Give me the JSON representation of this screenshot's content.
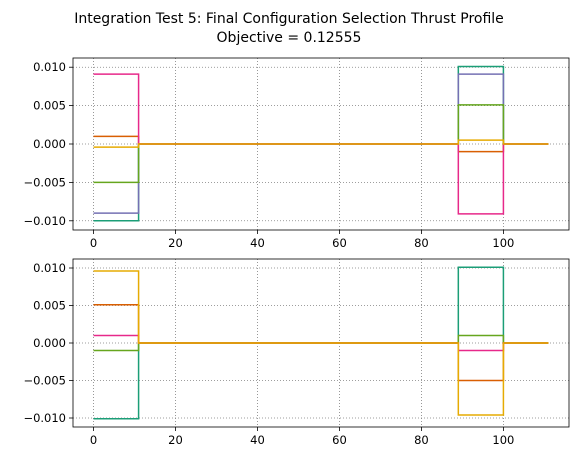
{
  "title": {
    "line1": "Integration Test 5: Final Configuration Selection Thrust Profile",
    "line2": "Objective = 0.12555"
  },
  "chart_data": [
    {
      "type": "line",
      "drawstyle": "steps",
      "title": "",
      "xlabel": "",
      "ylabel": "",
      "xlim": [
        -5,
        116
      ],
      "ylim": [
        -0.0112,
        0.0112
      ],
      "xticks": [
        0,
        20,
        40,
        60,
        80,
        100
      ],
      "yticks": [
        0.01,
        0.005,
        0.0,
        -0.005,
        -0.01
      ],
      "ytick_labels": [
        "0.010",
        "0.005",
        "0.000",
        "−0.005",
        "−0.010"
      ],
      "grid": true,
      "grid_style": "dotted",
      "legend": "none",
      "series": [
        {
          "color": "#1b9e77",
          "x": [
            0,
            11,
            89,
            100,
            111
          ],
          "values": [
            -0.01,
            0.0,
            0.0101,
            0.0,
            0.0
          ]
        },
        {
          "color": "#7570b3",
          "x": [
            0,
            11,
            89,
            100,
            111
          ],
          "values": [
            -0.009,
            0.0,
            0.0091,
            0.0,
            0.0
          ]
        },
        {
          "color": "#66a61e",
          "x": [
            0,
            11,
            89,
            100,
            111
          ],
          "values": [
            -0.005,
            0.0,
            0.0051,
            0.0,
            0.0
          ]
        },
        {
          "color": "#d95f02",
          "x": [
            0,
            11,
            89,
            100,
            111
          ],
          "values": [
            0.001,
            0.0,
            -0.001,
            0.0,
            0.0
          ]
        },
        {
          "color": "#e7298a",
          "x": [
            0,
            11,
            89,
            100,
            111
          ],
          "values": [
            0.0091,
            0.0,
            -0.0091,
            0.0,
            0.0
          ]
        },
        {
          "color": "#e6ab02",
          "x": [
            0,
            11,
            89,
            100,
            111
          ],
          "values": [
            -0.0004,
            0.0,
            0.0005,
            0.0,
            0.0
          ]
        }
      ]
    },
    {
      "type": "line",
      "drawstyle": "steps",
      "title": "",
      "xlabel": "",
      "ylabel": "",
      "xlim": [
        -5,
        116
      ],
      "ylim": [
        -0.0112,
        0.0112
      ],
      "xticks": [
        0,
        20,
        40,
        60,
        80,
        100
      ],
      "yticks": [
        0.01,
        0.005,
        0.0,
        -0.005,
        -0.01
      ],
      "ytick_labels": [
        "0.010",
        "0.005",
        "0.000",
        "−0.005",
        "−0.010"
      ],
      "grid": true,
      "grid_style": "dotted",
      "legend": "none",
      "series": [
        {
          "color": "#1b9e77",
          "x": [
            0,
            11,
            89,
            100,
            111
          ],
          "values": [
            -0.0101,
            0.0,
            0.0101,
            0.0,
            0.0
          ]
        },
        {
          "color": "#66a61e",
          "x": [
            0,
            11,
            89,
            100,
            111
          ],
          "values": [
            -0.001,
            0.0,
            0.001,
            0.0,
            0.0
          ]
        },
        {
          "color": "#e7298a",
          "x": [
            0,
            11,
            89,
            100,
            111
          ],
          "values": [
            0.001,
            0.0,
            -0.001,
            0.0,
            0.0
          ]
        },
        {
          "color": "#d95f02",
          "x": [
            0,
            11,
            89,
            100,
            111
          ],
          "values": [
            0.0051,
            0.0,
            -0.005,
            0.0,
            0.0
          ]
        },
        {
          "color": "#e6ab02",
          "x": [
            0,
            11,
            89,
            100,
            111
          ],
          "values": [
            0.0096,
            0.0,
            -0.0096,
            0.0,
            0.0
          ]
        }
      ]
    }
  ]
}
